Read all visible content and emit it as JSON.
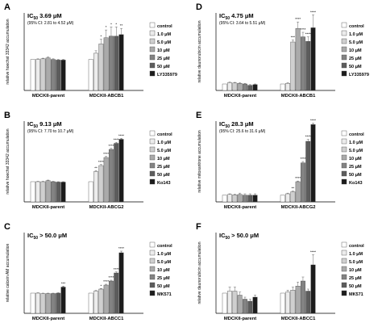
{
  "legend_colors": [
    "#ffffff",
    "#ececec",
    "#cfcfcf",
    "#aaaaaa",
    "#838383",
    "#5c5c5c",
    "#1c1c1c"
  ],
  "chart_data": [
    {
      "type": "bar",
      "panel": "A",
      "title": "IC50 3.69 μM",
      "ic50_prefix": "IC",
      "ic50_sub": "50",
      "ic50_value": " 3.69 μM",
      "ci": "(95% CI: 2.81 to 4.52 μM)",
      "ylabel": "relative hoechst 33342 accumulation",
      "categories": [
        "MDCKII-parent",
        "MDCKII-ABCB1"
      ],
      "ylim": [
        0,
        2.5
      ],
      "series": [
        {
          "name": "control",
          "values": [
            1.0,
            1.0
          ],
          "errors": [
            0.0,
            0.0
          ],
          "sig": [
            "",
            ""
          ]
        },
        {
          "name": "1.0 μM",
          "values": [
            1.0,
            1.2
          ],
          "errors": [
            0.02,
            0.08
          ],
          "sig": [
            "",
            ""
          ]
        },
        {
          "name": "5.0 μM",
          "values": [
            1.02,
            1.5
          ],
          "errors": [
            0.02,
            0.15
          ],
          "sig": [
            "",
            "*"
          ]
        },
        {
          "name": "10 μM",
          "values": [
            1.05,
            1.7
          ],
          "errors": [
            0.03,
            0.25
          ],
          "sig": [
            "",
            "*"
          ]
        },
        {
          "name": "25 μM",
          "values": [
            1.0,
            1.75
          ],
          "errors": [
            0.02,
            0.3
          ],
          "sig": [
            "",
            "*"
          ]
        },
        {
          "name": "50 μM",
          "values": [
            0.98,
            1.75
          ],
          "errors": [
            0.02,
            0.3
          ],
          "sig": [
            "",
            "*"
          ]
        },
        {
          "name": "LY335979",
          "values": [
            0.98,
            1.8
          ],
          "errors": [
            0.02,
            0.2
          ],
          "sig": [
            "",
            "**"
          ]
        }
      ]
    },
    {
      "type": "bar",
      "panel": "D",
      "title": "IC50 4.75 μM",
      "ic50_prefix": "IC",
      "ic50_sub": "50",
      "ic50_value": " 4.75 μM",
      "ci": "(95% CI: 3.64 to 5.51 μM)",
      "ylabel": "relative daunorubicin accumulation",
      "categories": [
        "MDCKII-parent",
        "MDCKII-ABCB1"
      ],
      "ylim": [
        0,
        12
      ],
      "series": [
        {
          "name": "control",
          "values": [
            1.0,
            1.0
          ],
          "errors": [
            0.0,
            0.0
          ],
          "sig": [
            "",
            ""
          ]
        },
        {
          "name": "1.0 μM",
          "values": [
            1.2,
            1.1
          ],
          "errors": [
            0.1,
            0.1
          ],
          "sig": [
            "",
            ""
          ]
        },
        {
          "name": "5.0 μM",
          "values": [
            1.15,
            7.5
          ],
          "errors": [
            0.1,
            0.3
          ],
          "sig": [
            "",
            "***"
          ]
        },
        {
          "name": "10 μM",
          "values": [
            1.1,
            9.6
          ],
          "errors": [
            0.1,
            1.0
          ],
          "sig": [
            "",
            "****"
          ]
        },
        {
          "name": "25 μM",
          "values": [
            1.0,
            8.3
          ],
          "errors": [
            0.1,
            0.7
          ],
          "sig": [
            "",
            "****"
          ]
        },
        {
          "name": "50 μM",
          "values": [
            0.8,
            7.6
          ],
          "errors": [
            0.1,
            0.7
          ],
          "sig": [
            "",
            "****"
          ]
        },
        {
          "name": "LY335979",
          "values": [
            0.9,
            9.7
          ],
          "errors": [
            0.1,
            2.0
          ],
          "sig": [
            "",
            "****"
          ]
        }
      ]
    },
    {
      "type": "bar",
      "panel": "B",
      "title": "IC50 9.13 μM",
      "ic50_prefix": "IC",
      "ic50_sub": "50",
      "ic50_value": " 9.13 μM",
      "ci": "(95% CI: 7.70 to 10.7 μM)",
      "ylabel": "relative hoechst 33342 accumulation",
      "categories": [
        "MDCKII-parent",
        "MDCKII-ABCG2"
      ],
      "ylim": [
        0,
        4
      ],
      "series": [
        {
          "name": "control",
          "values": [
            1.0,
            1.0
          ],
          "errors": [
            0.0,
            0.0
          ],
          "sig": [
            "",
            ""
          ]
        },
        {
          "name": "1.0 μM",
          "values": [
            1.0,
            1.5
          ],
          "errors": [
            0.02,
            0.05
          ],
          "sig": [
            "",
            "**"
          ]
        },
        {
          "name": "5.0 μM",
          "values": [
            1.0,
            1.8
          ],
          "errors": [
            0.02,
            0.05
          ],
          "sig": [
            "",
            "****"
          ]
        },
        {
          "name": "10 μM",
          "values": [
            1.05,
            2.2
          ],
          "errors": [
            0.03,
            0.05
          ],
          "sig": [
            "",
            "****"
          ]
        },
        {
          "name": "25 μM",
          "values": [
            1.0,
            2.6
          ],
          "errors": [
            0.02,
            0.05
          ],
          "sig": [
            "",
            "****"
          ]
        },
        {
          "name": "50 μM",
          "values": [
            0.98,
            2.9
          ],
          "errors": [
            0.02,
            0.05
          ],
          "sig": [
            "",
            "****"
          ]
        },
        {
          "name": "Ko143",
          "values": [
            0.98,
            3.1
          ],
          "errors": [
            0.02,
            0.05
          ],
          "sig": [
            "",
            "****"
          ]
        }
      ]
    },
    {
      "type": "bar",
      "panel": "E",
      "title": "IC50 28.3 μM",
      "ic50_prefix": "IC",
      "ic50_sub": "50",
      "ic50_value": " 28.3 μM",
      "ci": "(95% CI: 25.6 to 31.6 μM)",
      "ylabel": "relative mitoxantrone accumulation",
      "categories": [
        "MDCKII-parent",
        "MDCKII-ABCG2"
      ],
      "ylim": [
        0,
        12
      ],
      "series": [
        {
          "name": "control",
          "values": [
            1.0,
            1.0
          ],
          "errors": [
            0.0,
            0.0
          ],
          "sig": [
            "",
            ""
          ]
        },
        {
          "name": "1.0 μM",
          "values": [
            1.1,
            1.2
          ],
          "errors": [
            0.1,
            0.1
          ],
          "sig": [
            "",
            ""
          ]
        },
        {
          "name": "5.0 μM",
          "values": [
            1.05,
            1.5
          ],
          "errors": [
            0.1,
            0.1
          ],
          "sig": [
            "",
            "**"
          ]
        },
        {
          "name": "10 μM",
          "values": [
            1.1,
            3.0
          ],
          "errors": [
            0.2,
            0.1
          ],
          "sig": [
            "",
            "****"
          ]
        },
        {
          "name": "25 μM",
          "values": [
            1.0,
            5.8
          ],
          "errors": [
            0.2,
            0.2
          ],
          "sig": [
            "",
            "****"
          ]
        },
        {
          "name": "50 μM",
          "values": [
            1.0,
            9.0
          ],
          "errors": [
            0.2,
            0.3
          ],
          "sig": [
            "",
            "****"
          ]
        },
        {
          "name": "Ko143",
          "values": [
            1.0,
            11.5
          ],
          "errors": [
            0.2,
            0.2
          ],
          "sig": [
            "",
            "****"
          ]
        }
      ]
    },
    {
      "type": "bar",
      "panel": "C",
      "title": "IC50 > 50.0 μM",
      "ic50_prefix": "IC",
      "ic50_sub": "50",
      "ic50_value": " > 50.0 μM",
      "ci": "",
      "ylabel": "relative calcein AM accumulation",
      "categories": [
        "MDCKII-parent",
        "MDCKII-ABCC1"
      ],
      "ylim": [
        0,
        4
      ],
      "series": [
        {
          "name": "control",
          "values": [
            1.0,
            1.0
          ],
          "errors": [
            0.0,
            0.0
          ],
          "sig": [
            "",
            ""
          ]
        },
        {
          "name": "1.0 μM",
          "values": [
            1.0,
            1.1
          ],
          "errors": [
            0.02,
            0.03
          ],
          "sig": [
            "",
            ""
          ]
        },
        {
          "name": "5.0 μM",
          "values": [
            0.98,
            1.2
          ],
          "errors": [
            0.02,
            0.03
          ],
          "sig": [
            "",
            "*"
          ]
        },
        {
          "name": "10 μM",
          "values": [
            0.98,
            1.4
          ],
          "errors": [
            0.02,
            0.04
          ],
          "sig": [
            "",
            "****"
          ]
        },
        {
          "name": "25 μM",
          "values": [
            0.98,
            1.6
          ],
          "errors": [
            0.02,
            0.04
          ],
          "sig": [
            "",
            "****"
          ]
        },
        {
          "name": "50 μM",
          "values": [
            1.0,
            2.0
          ],
          "errors": [
            0.02,
            0.05
          ],
          "sig": [
            "",
            "****"
          ]
        },
        {
          "name": "MK571",
          "values": [
            1.3,
            3.0
          ],
          "errors": [
            0.05,
            0.08
          ],
          "sig": [
            "***",
            "****"
          ]
        }
      ]
    },
    {
      "type": "bar",
      "panel": "F",
      "title": "IC50 > 50.0 μM",
      "ic50_prefix": "IC",
      "ic50_sub": "50",
      "ic50_value": " > 50.0 μM",
      "ci": "",
      "ylabel": "relative daunorubicin accumulation",
      "categories": [
        "MDCKII-parent",
        "MDCKII-ABCC1"
      ],
      "ylim": [
        0,
        4
      ],
      "series": [
        {
          "name": "control",
          "values": [
            1.0,
            1.0
          ],
          "errors": [
            0.0,
            0.0
          ],
          "sig": [
            "",
            ""
          ]
        },
        {
          "name": "1.0 μM",
          "values": [
            1.1,
            1.05
          ],
          "errors": [
            0.2,
            0.1
          ],
          "sig": [
            "",
            ""
          ]
        },
        {
          "name": "5.0 μM",
          "values": [
            1.1,
            1.15
          ],
          "errors": [
            0.2,
            0.15
          ],
          "sig": [
            "",
            ""
          ]
        },
        {
          "name": "10 μM",
          "values": [
            0.9,
            1.35
          ],
          "errors": [
            0.15,
            0.2
          ],
          "sig": [
            "",
            ""
          ]
        },
        {
          "name": "25 μM",
          "values": [
            0.7,
            1.6
          ],
          "errors": [
            0.1,
            0.2
          ],
          "sig": [
            "",
            ""
          ]
        },
        {
          "name": "50 μM",
          "values": [
            0.6,
            1.1
          ],
          "errors": [
            0.1,
            0.1
          ],
          "sig": [
            "",
            ""
          ]
        },
        {
          "name": "MK571",
          "values": [
            0.8,
            2.4
          ],
          "errors": [
            0.1,
            0.5
          ],
          "sig": [
            "",
            "****"
          ]
        }
      ]
    }
  ]
}
